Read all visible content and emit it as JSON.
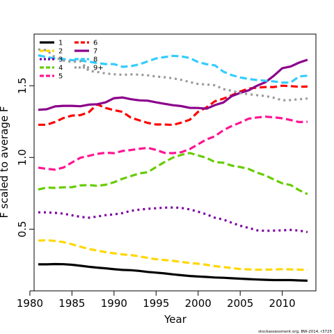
{
  "chart_data": {
    "type": "line",
    "xlabel": "Year",
    "ylabel": "F scaled to average F",
    "xlim": [
      1980.5,
      2014
    ],
    "ylim": [
      0.07,
      1.86
    ],
    "xticks": [
      1980,
      1985,
      1990,
      1995,
      2000,
      2005,
      2010
    ],
    "yticks": [
      0.5,
      1.0,
      1.5
    ],
    "ytick_labels": [
      "0.5",
      "1.0",
      "1.5"
    ],
    "grid": false,
    "legend_position": "top-left",
    "credit": "stockassessment.org, BW-2014, r3725",
    "x": [
      1981,
      1982,
      1983,
      1984,
      1985,
      1986,
      1987,
      1988,
      1989,
      1990,
      1991,
      1992,
      1993,
      1994,
      1995,
      1996,
      1997,
      1998,
      1999,
      2000,
      2001,
      2002,
      2003,
      2004,
      2005,
      2006,
      2007,
      2008,
      2009,
      2010,
      2011,
      2012,
      2013
    ],
    "series": [
      {
        "name": "1",
        "color": "#000000",
        "dash": "solid",
        "values": [
          0.255,
          0.255,
          0.257,
          0.256,
          0.252,
          0.245,
          0.238,
          0.232,
          0.227,
          0.221,
          0.216,
          0.214,
          0.209,
          0.202,
          0.197,
          0.192,
          0.185,
          0.179,
          0.174,
          0.17,
          0.167,
          0.163,
          0.161,
          0.158,
          0.155,
          0.152,
          0.149,
          0.147,
          0.145,
          0.145,
          0.145,
          0.143,
          0.141
        ]
      },
      {
        "name": "2",
        "color": "#FFD700",
        "dash": "dash",
        "values": [
          0.42,
          0.423,
          0.418,
          0.41,
          0.395,
          0.378,
          0.362,
          0.351,
          0.34,
          0.332,
          0.324,
          0.32,
          0.31,
          0.3,
          0.29,
          0.285,
          0.279,
          0.272,
          0.264,
          0.259,
          0.252,
          0.242,
          0.236,
          0.229,
          0.222,
          0.22,
          0.217,
          0.218,
          0.219,
          0.221,
          0.22,
          0.218,
          0.217
        ]
      },
      {
        "name": "3",
        "color": "#7B00A0",
        "dash": "dot",
        "values": [
          0.617,
          0.617,
          0.614,
          0.608,
          0.597,
          0.586,
          0.58,
          0.588,
          0.598,
          0.603,
          0.612,
          0.628,
          0.636,
          0.642,
          0.646,
          0.65,
          0.651,
          0.648,
          0.638,
          0.622,
          0.603,
          0.58,
          0.567,
          0.545,
          0.524,
          0.509,
          0.492,
          0.488,
          0.49,
          0.492,
          0.495,
          0.49,
          0.48
        ]
      },
      {
        "name": "4",
        "color": "#66CC00",
        "dash": "dash",
        "values": [
          0.777,
          0.79,
          0.788,
          0.792,
          0.793,
          0.805,
          0.808,
          0.802,
          0.81,
          0.827,
          0.851,
          0.87,
          0.889,
          0.897,
          0.933,
          0.968,
          0.999,
          1.018,
          1.031,
          1.014,
          0.997,
          0.968,
          0.963,
          0.943,
          0.933,
          0.92,
          0.894,
          0.875,
          0.846,
          0.82,
          0.808,
          0.772,
          0.745
        ]
      },
      {
        "name": "5",
        "color": "#FF1493",
        "dash": "dash",
        "values": [
          0.929,
          0.921,
          0.915,
          0.93,
          0.965,
          0.998,
          1.011,
          1.025,
          1.033,
          1.03,
          1.045,
          1.052,
          1.06,
          1.067,
          1.053,
          1.032,
          1.03,
          1.037,
          1.058,
          1.092,
          1.126,
          1.148,
          1.19,
          1.219,
          1.243,
          1.27,
          1.279,
          1.284,
          1.28,
          1.273,
          1.261,
          1.247,
          1.249
        ]
      },
      {
        "name": "6",
        "color": "#FF0000",
        "dash": "dash",
        "values": [
          1.228,
          1.228,
          1.248,
          1.275,
          1.292,
          1.295,
          1.315,
          1.37,
          1.345,
          1.33,
          1.318,
          1.278,
          1.259,
          1.241,
          1.23,
          1.23,
          1.227,
          1.243,
          1.263,
          1.318,
          1.349,
          1.392,
          1.41,
          1.433,
          1.46,
          1.48,
          1.487,
          1.491,
          1.491,
          1.5,
          1.497,
          1.493,
          1.494
        ]
      },
      {
        "name": "7",
        "color": "#8B008B",
        "dash": "solid",
        "values": [
          1.332,
          1.336,
          1.356,
          1.36,
          1.36,
          1.357,
          1.368,
          1.371,
          1.384,
          1.413,
          1.418,
          1.406,
          1.398,
          1.396,
          1.384,
          1.374,
          1.364,
          1.358,
          1.346,
          1.345,
          1.34,
          1.365,
          1.383,
          1.428,
          1.45,
          1.468,
          1.5,
          1.525,
          1.57,
          1.622,
          1.634,
          1.661,
          1.681
        ]
      },
      {
        "name": "8",
        "color": "#33CCFF",
        "dash": "dash",
        "values": [
          1.712,
          1.7,
          1.69,
          1.686,
          1.678,
          1.675,
          1.668,
          1.658,
          1.651,
          1.651,
          1.632,
          1.636,
          1.649,
          1.67,
          1.69,
          1.7,
          1.708,
          1.705,
          1.693,
          1.665,
          1.65,
          1.642,
          1.598,
          1.574,
          1.558,
          1.547,
          1.54,
          1.535,
          1.53,
          1.522,
          1.522,
          1.565,
          1.57
        ]
      },
      {
        "name": "9+",
        "color": "#999999",
        "dash": "dot",
        "values": [
          1.753,
          1.748,
          1.698,
          1.675,
          1.666,
          1.671,
          1.604,
          1.596,
          1.586,
          1.58,
          1.576,
          1.579,
          1.577,
          1.573,
          1.564,
          1.559,
          1.552,
          1.541,
          1.526,
          1.512,
          1.509,
          1.503,
          1.477,
          1.465,
          1.449,
          1.441,
          1.434,
          1.428,
          1.416,
          1.398,
          1.4,
          1.406,
          1.411
        ]
      }
    ]
  }
}
